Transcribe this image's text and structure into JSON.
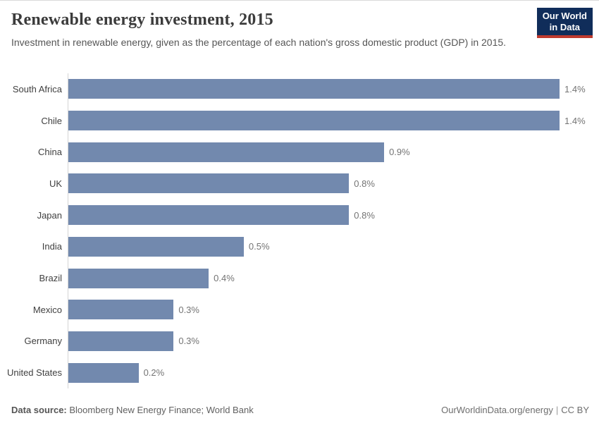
{
  "header": {
    "title": "Renewable energy investment, 2015",
    "subtitle": "Investment in renewable energy, given as the percentage of each nation's gross domestic product (GDP) in 2015.",
    "logo": {
      "line1": "Our World",
      "line2": "in Data",
      "bg_color": "#102d5a",
      "stripe_color": "#bf3a2e"
    }
  },
  "chart_data": {
    "type": "bar",
    "orientation": "horizontal",
    "title": "Renewable energy investment, 2015",
    "categories": [
      "South Africa",
      "Chile",
      "China",
      "UK",
      "Japan",
      "India",
      "Brazil",
      "Mexico",
      "Germany",
      "United States"
    ],
    "values": [
      1.4,
      1.4,
      0.9,
      0.8,
      0.8,
      0.5,
      0.4,
      0.3,
      0.3,
      0.2
    ],
    "value_labels": [
      "1.4%",
      "1.4%",
      "0.9%",
      "0.8%",
      "0.8%",
      "0.5%",
      "0.4%",
      "0.3%",
      "0.3%",
      "0.2%"
    ],
    "unit": "%",
    "xlabel": "",
    "ylabel": "",
    "xlim": [
      0,
      1.4
    ],
    "grid": false,
    "legend": "none",
    "bar_color": "#7289ae"
  },
  "footer": {
    "source_label": "Data source:",
    "source_text": " Bloomberg New Energy Finance; World Bank",
    "site_text": "OurWorldinData.org/energy",
    "separator": "|",
    "license_text": "CC BY"
  }
}
